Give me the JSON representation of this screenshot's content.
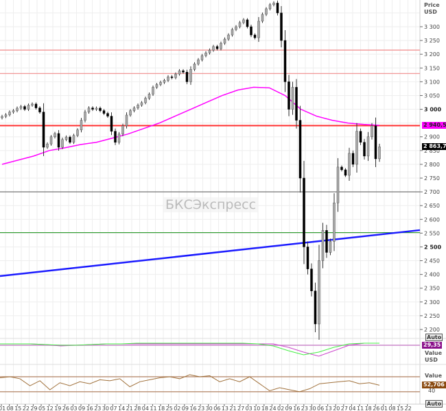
{
  "chart_data": [
    {
      "type": "candlestick",
      "ylabel": "Price",
      "unit": "USD",
      "ylim": [
        2180,
        3400
      ],
      "y_ticks": [
        3300,
        3250,
        3200,
        3150,
        3100,
        3050,
        3000,
        2900,
        2850,
        2800,
        2750,
        2700,
        2650,
        2600,
        2550,
        2500,
        2450,
        2400,
        2350,
        2300,
        2250,
        2200
      ],
      "y_tick_labels": [
        "3 300",
        "3 250",
        "3 200",
        "3 150",
        "3 100",
        "3 050",
        "3 000",
        "2 900",
        "2 850",
        "2 800",
        "2 750",
        "2 700",
        "2 650",
        "2 600",
        "2 550",
        "2 500",
        "2 450",
        "2 400",
        "2 350",
        "2 300",
        "2 250",
        "2 200"
      ],
      "x_tick_labels": [
        "01",
        "08",
        "15",
        "22",
        "29",
        "05",
        "12",
        "19",
        "26",
        "03",
        "09",
        "16",
        "23",
        "30",
        "07",
        "14",
        "21",
        "28",
        "04",
        "11",
        "18",
        "25",
        "02",
        "09",
        "16",
        "23",
        "30",
        "06",
        "13",
        "21",
        "27",
        "03",
        "10",
        "18",
        "24",
        "02",
        "09",
        "16",
        "23",
        "30",
        "06",
        "13",
        "20",
        "27",
        "04",
        "11",
        "18",
        "26",
        "01",
        "08",
        "15",
        "22"
      ],
      "closes": [
        2974,
        2980,
        2990,
        2995,
        3004,
        3010,
        3000,
        3015,
        3019,
        3005,
        2990,
        2862,
        2874,
        2900,
        2912,
        2862,
        2890,
        2899,
        2880,
        2905,
        2925,
        2960,
        2990,
        3005,
        3000,
        3004,
        2995,
        2985,
        2975,
        2920,
        2880,
        2910,
        2940,
        2979,
        2995,
        3005,
        3015,
        3024,
        3040,
        3055,
        3080,
        3090,
        3098,
        3105,
        3118,
        3115,
        3128,
        3140,
        3135,
        3100,
        3145,
        3165,
        3180,
        3195,
        3205,
        3215,
        3228,
        3220,
        3240,
        3255,
        3270,
        3290,
        3300,
        3315,
        3325,
        3300,
        3270,
        3260,
        3320,
        3345,
        3365,
        3380,
        3386,
        3350,
        3250,
        3100,
        3000,
        3080,
        2960,
        2750,
        2500,
        2420,
        2340,
        2220,
        2450,
        2560,
        2480,
        2520,
        2660,
        2790,
        2780,
        2760,
        2840,
        2800,
        2920,
        2880,
        2830,
        2900,
        2940,
        2820,
        2863.7
      ],
      "moving_average": [
        2800,
        2815,
        2830,
        2850,
        2860,
        2872,
        2880,
        2895,
        2910,
        2930,
        2950,
        2975,
        3000,
        3025,
        3050,
        3070,
        3080,
        3078,
        3050,
        3000,
        2975,
        2960,
        2950,
        2945,
        2942
      ],
      "horizontal_levels": [
        {
          "value": 2940.58,
          "color": "#ff3333",
          "label": "2 940,58"
        },
        {
          "value": 3215,
          "color": "#f08a8a"
        },
        {
          "value": 3130,
          "color": "#f08a8a"
        },
        {
          "value": 2700,
          "color": "#666666"
        },
        {
          "value": 2552,
          "color": "#2a9a2a"
        }
      ],
      "trendline": {
        "from": 2394,
        "to": 2561,
        "color": "#1a1aff"
      },
      "last_price_label": "2 863,70",
      "auto_label": "Auto"
    },
    {
      "type": "line",
      "unit": "USD",
      "ylabel": "Value",
      "value_label": "29,35",
      "auto_label": "",
      "series": [
        {
          "color": "#cc44cc",
          "values": [
            0,
            0,
            0,
            -1,
            -3,
            -2,
            -1,
            0,
            0,
            0,
            0,
            0,
            0,
            0,
            0,
            0,
            0,
            0,
            0,
            -5,
            -12,
            -18,
            -10,
            -2,
            1,
            1
          ]
        },
        {
          "color": "#44ee44",
          "values": [
            0,
            0,
            0,
            -1,
            -2,
            -2,
            -1,
            0,
            0,
            1,
            1,
            1,
            1,
            1,
            1,
            1,
            1,
            0,
            -3,
            -10,
            -16,
            -12,
            -5,
            0,
            1,
            1
          ]
        }
      ]
    },
    {
      "type": "line",
      "ylabel": "Value",
      "value_label": "52,706",
      "level_label": "40",
      "auto_label": "Auto",
      "series": [
        {
          "color": "#a0703a",
          "values": [
            68,
            70,
            66,
            52,
            62,
            44,
            58,
            52,
            60,
            56,
            64,
            62,
            66,
            50,
            60,
            64,
            68,
            70,
            66,
            74,
            70,
            72,
            60,
            66,
            60,
            70,
            56,
            42,
            48,
            44,
            40,
            46,
            56,
            58,
            60,
            62,
            56,
            58,
            53
          ]
        }
      ]
    }
  ],
  "watermark": "БКСЭкспресс",
  "price_header": {
    "title": "Price",
    "unit": "USD"
  },
  "osc_header": {
    "title": "Value",
    "unit": "USD"
  },
  "rsi_header": {
    "title": "Value"
  }
}
